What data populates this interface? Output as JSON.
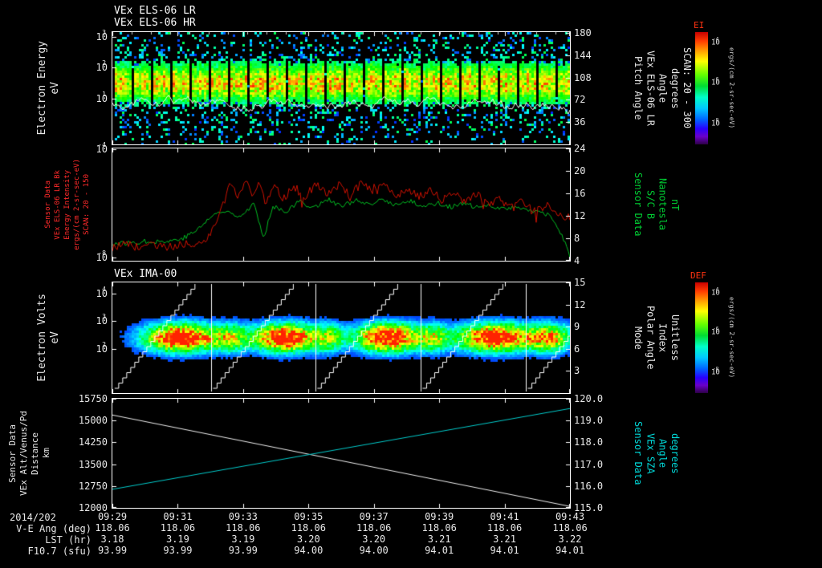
{
  "titles": {
    "panel1_line1": "VEx ELS-06 LR",
    "panel1_line2": "VEx ELS-06 HR",
    "panel3": "VEx IMA-00"
  },
  "colors": {
    "background": "#000000",
    "axis": "#ffffff",
    "els_label_red": "#ff2a2a",
    "mag_green": "#00cc33",
    "sza_cyan": "#00d8d8",
    "red_trace": "#cc1100",
    "white_trace": "#f0f0f0"
  },
  "panels": {
    "p1": {
      "left_label_lines": [
        "Electron Energy",
        "eV"
      ],
      "right_label_lines": [
        "Pitch Angle",
        "VEx ELS-06 LR",
        "Angle",
        "degrees",
        "SCAN: 20 - 300"
      ],
      "left_ticks": [
        {
          "t": "10^3",
          "f": 0.04
        },
        {
          "t": "10^2",
          "f": 0.315
        },
        {
          "t": "10^1",
          "f": 0.59
        }
      ],
      "right_ticks": [
        {
          "t": "180",
          "f": 0.01
        },
        {
          "t": "144",
          "f": 0.207
        },
        {
          "t": "108",
          "f": 0.404
        },
        {
          "t": "72",
          "f": 0.601
        },
        {
          "t": "36",
          "f": 0.798
        }
      ]
    },
    "p2": {
      "left_label_lines": [
        "Sensor Data",
        "VEx ELS-06 LR Bk",
        "Energy Intensity",
        "ergs/(cm 2-sr-sec-eV)",
        "SCAN: 20 - 150"
      ],
      "right_label_lines": [
        "Sensor Data",
        "S/C B",
        "Nanotesla",
        "nT"
      ],
      "left_ticks": [
        {
          "t": "10^-4",
          "f": 0.01
        },
        {
          "t": "10^-8",
          "f": 0.97
        }
      ],
      "right_ticks": [
        {
          "t": "24",
          "f": 0
        },
        {
          "t": "20",
          "f": 0.2
        },
        {
          "t": "16",
          "f": 0.4
        },
        {
          "t": "12",
          "f": 0.6
        },
        {
          "t": "8",
          "f": 0.8
        },
        {
          "t": "4",
          "f": 1
        }
      ]
    },
    "p3": {
      "left_label_lines": [
        "Electron Volts",
        "eV"
      ],
      "right_label_lines": [
        "Mode",
        "Polar Angle",
        "Index",
        "Unitless"
      ],
      "left_ticks": [
        {
          "t": "10^4",
          "f": 0.1
        },
        {
          "t": "10^3",
          "f": 0.35
        },
        {
          "t": "10^2",
          "f": 0.6
        }
      ],
      "right_ticks": [
        {
          "t": "15",
          "f": 0
        },
        {
          "t": "12",
          "f": 0.2
        },
        {
          "t": "9",
          "f": 0.4
        },
        {
          "t": "6",
          "f": 0.6
        },
        {
          "t": "3",
          "f": 0.8
        }
      ]
    },
    "p4": {
      "left_label_lines": [
        "Sensor Data",
        "VEx Alt/Venus/Pd",
        "Distance",
        "km"
      ],
      "right_label_lines": [
        "Sensor Data",
        "VEx SZA",
        "Angle",
        "degrees"
      ],
      "left_ticks": [
        {
          "t": "15750",
          "f": 0
        },
        {
          "t": "15000",
          "f": 0.2
        },
        {
          "t": "14250",
          "f": 0.4
        },
        {
          "t": "13500",
          "f": 0.6
        },
        {
          "t": "12750",
          "f": 0.8
        },
        {
          "t": "12000",
          "f": 1
        }
      ],
      "right_ticks": [
        {
          "t": "120.0",
          "f": 0
        },
        {
          "t": "119.0",
          "f": 0.2
        },
        {
          "t": "118.0",
          "f": 0.4
        },
        {
          "t": "117.0",
          "f": 0.6
        },
        {
          "t": "116.0",
          "f": 0.8
        },
        {
          "t": "115.0",
          "f": 1
        }
      ]
    }
  },
  "colorbars": {
    "ei": {
      "title": "EI",
      "unit": "ergs/(cm 2-sr-sec-eV)",
      "ticks": [
        {
          "t": "10^-4",
          "f": 0.1
        },
        {
          "t": "10^-6",
          "f": 0.46
        },
        {
          "t": "10^-8",
          "f": 0.82
        }
      ]
    },
    "def": {
      "title": "DEF",
      "unit": "ergs/(cm 2-sr-sec-eV)",
      "ticks": [
        {
          "t": "10^-4",
          "f": 0.1
        },
        {
          "t": "10^-6",
          "f": 0.46
        },
        {
          "t": "10^-8",
          "f": 0.82
        }
      ]
    }
  },
  "time_axis": {
    "date": "2014/202",
    "labels": [
      "09:29",
      "09:31",
      "09:33",
      "09:35",
      "09:37",
      "09:39",
      "09:41",
      "09:43"
    ]
  },
  "table": {
    "rows": [
      {
        "label": "V-E Ang (deg)",
        "values": [
          "118.06",
          "118.06",
          "118.06",
          "118.06",
          "118.06",
          "118.06",
          "118.06",
          "118.06"
        ]
      },
      {
        "label": "LST (hr)",
        "values": [
          "3.18",
          "3.19",
          "3.19",
          "3.20",
          "3.20",
          "3.21",
          "3.21",
          "3.22"
        ]
      },
      {
        "label": "F10.7 (sfu)",
        "values": [
          "93.99",
          "93.99",
          "93.99",
          "94.00",
          "94.00",
          "94.01",
          "94.01",
          "94.01"
        ]
      }
    ]
  },
  "chart_data": [
    {
      "type": "heatmap",
      "title": "VEx ELS-06 LR / VEx ELS-06 HR",
      "ylabel": "Electron Energy (eV)",
      "yscale": "log",
      "y_tick_values": [
        1000,
        100,
        10
      ],
      "right_ylabel": "Pitch Angle (degrees), SCAN: 20 - 300",
      "right_tick_values": [
        180,
        144,
        108,
        72,
        36
      ],
      "time_range": [
        "09:29",
        "09:43"
      ],
      "colorbar": "EI (ergs/cm2-sr-sec-eV), 1e-8 to 1e-4",
      "render": {
        "seed": 1234,
        "band_center": 0.45,
        "band_sigma": 0.12,
        "gap_period": 24,
        "gap_width": 3,
        "trace_base": 0.63
      }
    },
    {
      "type": "line",
      "ylabel": "VEx ELS-06 LR Bk Energy Intensity, ergs/(cm 2-sr-sec-eV), SCAN: 20 - 150 (log 1e-8..1e-4)",
      "right_ylabel": "S/C B Nanotesla nT (4..24)",
      "seed": 77,
      "series": [
        {
          "name": "S/C B (nT)",
          "color": "#00bb22",
          "ylim": [
            4,
            24
          ],
          "noise": 0.9,
          "keypoints": [
            [
              0,
              7.0
            ],
            [
              0.04,
              7.2
            ],
            [
              0.08,
              7.5
            ],
            [
              0.12,
              7.4
            ],
            [
              0.16,
              8.2
            ],
            [
              0.19,
              9.8
            ],
            [
              0.22,
              12.2
            ],
            [
              0.25,
              12.8
            ],
            [
              0.28,
              12.0
            ],
            [
              0.31,
              14.2
            ],
            [
              0.33,
              7.8
            ],
            [
              0.35,
              13.8
            ],
            [
              0.38,
              12.8
            ],
            [
              0.41,
              14.6
            ],
            [
              0.44,
              13.4
            ],
            [
              0.47,
              15.0
            ],
            [
              0.5,
              13.6
            ],
            [
              0.53,
              14.8
            ],
            [
              0.56,
              13.8
            ],
            [
              0.59,
              14.9
            ],
            [
              0.62,
              13.9
            ],
            [
              0.65,
              14.6
            ],
            [
              0.68,
              13.7
            ],
            [
              0.71,
              14.3
            ],
            [
              0.74,
              13.6
            ],
            [
              0.77,
              14.1
            ],
            [
              0.8,
              13.4
            ],
            [
              0.83,
              13.8
            ],
            [
              0.86,
              13.2
            ],
            [
              0.89,
              13.6
            ],
            [
              0.92,
              12.8
            ],
            [
              0.95,
              12.2
            ],
            [
              0.97,
              10.5
            ],
            [
              0.985,
              8.0
            ],
            [
              1,
              5.0
            ]
          ]
        },
        {
          "name": "ELS-06 LR Bk Energy Intensity (log10)",
          "color": "#cc1100",
          "ylim": [
            -8,
            -4
          ],
          "noise": 0.3,
          "spike": 0.85,
          "keypoints": [
            [
              0,
              -7.55
            ],
            [
              0.03,
              -7.4
            ],
            [
              0.06,
              -7.55
            ],
            [
              0.09,
              -7.45
            ],
            [
              0.12,
              -7.55
            ],
            [
              0.15,
              -7.4
            ],
            [
              0.18,
              -7.45
            ],
            [
              0.205,
              -7.2
            ],
            [
              0.225,
              -6.7
            ],
            [
              0.245,
              -5.9
            ],
            [
              0.26,
              -5.15
            ],
            [
              0.275,
              -5.7
            ],
            [
              0.29,
              -5.1
            ],
            [
              0.305,
              -5.75
            ],
            [
              0.32,
              -5.2
            ],
            [
              0.335,
              -6.0
            ],
            [
              0.355,
              -5.35
            ],
            [
              0.375,
              -5.8
            ],
            [
              0.395,
              -5.3
            ],
            [
              0.42,
              -5.75
            ],
            [
              0.445,
              -5.25
            ],
            [
              0.47,
              -5.7
            ],
            [
              0.495,
              -5.3
            ],
            [
              0.52,
              -5.65
            ],
            [
              0.545,
              -5.25
            ],
            [
              0.57,
              -5.6
            ],
            [
              0.595,
              -5.3
            ],
            [
              0.62,
              -5.7
            ],
            [
              0.645,
              -5.4
            ],
            [
              0.67,
              -5.75
            ],
            [
              0.695,
              -5.45
            ],
            [
              0.72,
              -5.85
            ],
            [
              0.745,
              -5.55
            ],
            [
              0.77,
              -5.9
            ],
            [
              0.795,
              -5.6
            ],
            [
              0.82,
              -6.05
            ],
            [
              0.845,
              -5.8
            ],
            [
              0.87,
              -6.15
            ],
            [
              0.895,
              -5.9
            ],
            [
              0.92,
              -6.25
            ],
            [
              0.95,
              -6.0
            ],
            [
              0.975,
              -6.35
            ],
            [
              1,
              -6.45
            ]
          ]
        }
      ]
    },
    {
      "type": "heatmap",
      "title": "VEx IMA-00",
      "ylabel": "Electron Volts (eV)",
      "yscale": "log",
      "y_tick_values": [
        10000,
        1000,
        100
      ],
      "right_ylabel": "Mode / Polar Angle Index (Unitless)",
      "right_tick_values": [
        15,
        12,
        9,
        6,
        3
      ],
      "colorbar": "DEF (ergs/cm2-sr-sec-eV), 1e-8 to 1e-4",
      "render": {
        "seed": 999,
        "y_center": 0.49,
        "y_sigma": 0.085,
        "blobs": [
          {
            "x": 0.148,
            "w": 0.055,
            "a": 1.25
          },
          {
            "x": 0.255,
            "w": 0.025,
            "a": 0.55
          },
          {
            "x": 0.375,
            "w": 0.05,
            "a": 1.2
          },
          {
            "x": 0.47,
            "w": 0.022,
            "a": 0.5
          },
          {
            "x": 0.6,
            "w": 0.05,
            "a": 1.25
          },
          {
            "x": 0.7,
            "w": 0.022,
            "a": 0.5
          },
          {
            "x": 0.835,
            "w": 0.06,
            "a": 1.2
          },
          {
            "x": 0.955,
            "w": 0.03,
            "a": 0.8
          }
        ],
        "dividers": [
          0.216,
          0.444,
          0.674,
          0.904
        ],
        "sweep_starts": [
          0.005,
          0.22,
          0.448,
          0.678,
          0.908
        ]
      }
    },
    {
      "type": "line",
      "ylabel": "VEx Alt/Venus/Pd Distance (km), 12000..15750",
      "right_ylabel": "VEx SZA (degrees), 115..120",
      "seed": 5,
      "series": [
        {
          "name": "VEx Alt/Venus/Pd Distance (km)",
          "color": "#f0f0f0",
          "ylim": [
            12000,
            15750
          ],
          "noise": 0,
          "keypoints": [
            [
              0,
              15190
            ],
            [
              1,
              12050
            ]
          ]
        },
        {
          "name": "VEx SZA (degrees)",
          "color": "#00cccc",
          "ylim": [
            115,
            120
          ],
          "noise": 0,
          "keypoints": [
            [
              0,
              115.85
            ],
            [
              1,
              119.55
            ]
          ]
        }
      ]
    }
  ]
}
